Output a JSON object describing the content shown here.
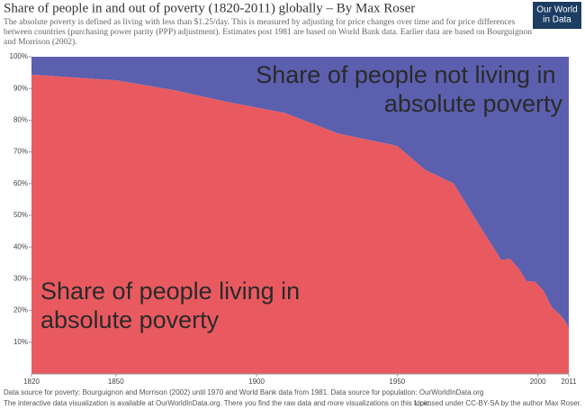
{
  "chart_data": {
    "type": "stacked-area",
    "title": "Share of people in and out of poverty (1820-2011) globally – By Max Roser",
    "subtitle_lines": [
      "The absolute poverty is defined as living with less than $1.25/day. This is measured by adjusting for price changes over time and for price differences",
      "between countries (purchasing power parity (PPP) adjustment). Estimates post 1981 are based on World Bank data. Earlier data are based on Bourguignon",
      "and Morrison (2002)."
    ],
    "logo_lines": [
      "Our World",
      "in Data"
    ],
    "footer_lines": [
      "Data source for poverty: Bourguignon and Morrison (2002) until 1970 and World Bank data from 1981. Data source for population: OurWorldInData.org",
      "The interactive data visualization is available at OurWorldInData.org. There you find the raw data and more visualizations on this topic."
    ],
    "license": "Licensed under CC-BY-SA by the author Max Roser.",
    "x": [
      1820,
      1850,
      1870,
      1890,
      1910,
      1929,
      1950,
      1960,
      1970,
      1981,
      1984,
      1987,
      1990,
      1993,
      1996,
      1999,
      2002,
      2005,
      2008,
      2010,
      2011
    ],
    "series": [
      {
        "name": "Share of people living in absolute poverty",
        "color": "#e85a60",
        "values": [
          94.4,
          92.6,
          89.6,
          85.7,
          82.3,
          75.8,
          71.9,
          64.3,
          60.1,
          44.3,
          40.2,
          35.9,
          36.4,
          33.5,
          29.3,
          29.1,
          26.3,
          21.0,
          18.6,
          16.3,
          14.5
        ]
      },
      {
        "name": "Share of people not living in absolute poverty",
        "color": "#5b5fae",
        "values": [
          5.6,
          7.4,
          10.4,
          14.3,
          17.7,
          24.2,
          28.1,
          35.7,
          39.9,
          55.7,
          59.8,
          64.1,
          63.6,
          66.5,
          70.7,
          70.9,
          73.7,
          79.0,
          81.4,
          83.7,
          85.5
        ]
      }
    ],
    "xlim": [
      1820,
      2011
    ],
    "xticks": [
      1820,
      1850,
      1900,
      1950,
      2000,
      2011
    ],
    "ylim": [
      0,
      100
    ],
    "yticks": [
      {
        "value": 10,
        "label": "10%"
      },
      {
        "value": 20,
        "label": "20%"
      },
      {
        "value": 30,
        "label": "30%"
      },
      {
        "value": 40,
        "label": "40%"
      },
      {
        "value": 50,
        "label": "50%"
      },
      {
        "value": 60,
        "label": "60%"
      },
      {
        "value": 70,
        "label": "70%"
      },
      {
        "value": 80,
        "label": "80%"
      },
      {
        "value": 90,
        "label": "90%"
      },
      {
        "value": 100,
        "label": "100%"
      }
    ]
  }
}
